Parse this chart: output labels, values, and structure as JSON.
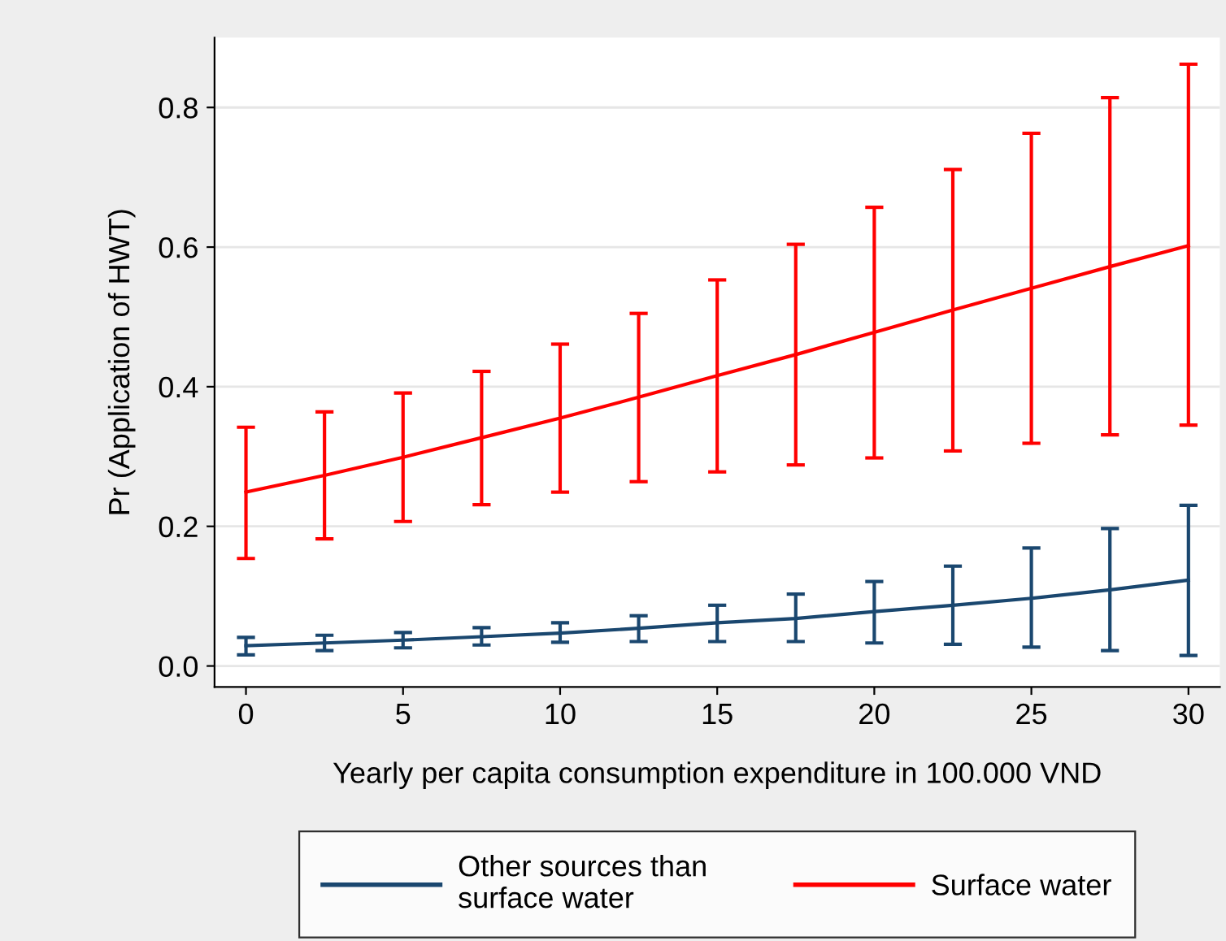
{
  "chart_data": {
    "type": "line",
    "xlabel": "Yearly per capita consumption expenditure in 100.000 VND",
    "ylabel": "Pr (Application of HWT)",
    "x": [
      0,
      2.5,
      5,
      7.5,
      10,
      12.5,
      15,
      17.5,
      20,
      22.5,
      25,
      27.5,
      30
    ],
    "series": [
      {
        "name": "Other sources than\nsurface water",
        "color": "#1a476f",
        "values": [
          0.029,
          0.033,
          0.037,
          0.042,
          0.047,
          0.054,
          0.062,
          0.068,
          0.078,
          0.087,
          0.097,
          0.109,
          0.123
        ],
        "errors": [
          [
            0.016,
            0.041
          ],
          [
            0.022,
            0.044
          ],
          [
            0.026,
            0.048
          ],
          [
            0.03,
            0.055
          ],
          [
            0.034,
            0.062
          ],
          [
            0.035,
            0.072
          ],
          [
            0.035,
            0.087
          ],
          [
            0.035,
            0.103
          ],
          [
            0.033,
            0.121
          ],
          [
            0.031,
            0.143
          ],
          [
            0.027,
            0.169
          ],
          [
            0.022,
            0.197
          ],
          [
            0.015,
            0.23
          ]
        ]
      },
      {
        "name": "Surface water",
        "color": "#ff0000",
        "values": [
          0.249,
          0.273,
          0.299,
          0.327,
          0.355,
          0.385,
          0.416,
          0.446,
          0.478,
          0.51,
          0.541,
          0.572,
          0.602
        ],
        "errors": [
          [
            0.154,
            0.342
          ],
          [
            0.182,
            0.364
          ],
          [
            0.207,
            0.391
          ],
          [
            0.231,
            0.422
          ],
          [
            0.249,
            0.461
          ],
          [
            0.264,
            0.505
          ],
          [
            0.278,
            0.553
          ],
          [
            0.288,
            0.604
          ],
          [
            0.298,
            0.657
          ],
          [
            0.308,
            0.711
          ],
          [
            0.319,
            0.763
          ],
          [
            0.331,
            0.814
          ],
          [
            0.345,
            0.862
          ]
        ]
      }
    ],
    "xlim": [
      -1,
      31
    ],
    "ylim": [
      -0.03,
      0.9
    ],
    "xticks": [
      0,
      5,
      10,
      15,
      20,
      25,
      30
    ],
    "yticks": [
      {
        "value": 0,
        "label": "0.0"
      },
      {
        "value": 0.2,
        "label": "0.2"
      },
      {
        "value": 0.4,
        "label": "0.4"
      },
      {
        "value": 0.6,
        "label": "0.6"
      },
      {
        "value": 0.8,
        "label": "0.8"
      }
    ],
    "grid": "y",
    "legend": "bottom",
    "marker": "none",
    "line_style": "solid"
  }
}
